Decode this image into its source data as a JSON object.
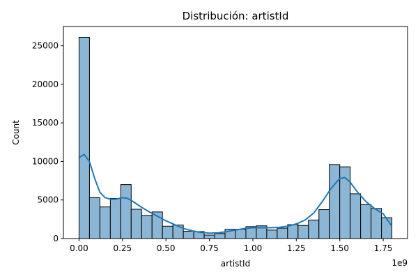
{
  "chart_data": {
    "type": "histogram",
    "title": "Distribución: artistId",
    "xlabel": "artistId",
    "ylabel": "Count",
    "x_scale_label": "1e9",
    "x_range": [
      -0.09,
      1.89
    ],
    "ylim": [
      0,
      27500
    ],
    "x_ticks": [
      0.0,
      0.25,
      0.5,
      0.75,
      1.0,
      1.25,
      1.5,
      1.75
    ],
    "x_tick_labels": [
      "0.00",
      "0.25",
      "0.50",
      "0.75",
      "1.00",
      "1.25",
      "1.50",
      "1.75"
    ],
    "y_ticks": [
      0,
      5000,
      10000,
      15000,
      20000,
      25000
    ],
    "y_tick_labels": [
      "0",
      "5000",
      "10000",
      "15000",
      "20000",
      "25000"
    ],
    "bin_start": 0.0,
    "bin_end": 1.8,
    "bar_color": "#8bb6d6",
    "bar_edge_color": "#000000",
    "kde_color": "#1f77b4",
    "values": [
      26100,
      5300,
      4100,
      5200,
      7000,
      3800,
      3000,
      3450,
      1600,
      1750,
      950,
      900,
      450,
      650,
      1200,
      1200,
      1550,
      1650,
      1100,
      1350,
      1800,
      1700,
      2400,
      3750,
      9600,
      9300,
      5800,
      4400,
      3900,
      2700
    ],
    "kde": [
      [
        0.0,
        10500
      ],
      [
        0.03,
        10900
      ],
      [
        0.06,
        10000
      ],
      [
        0.09,
        7800
      ],
      [
        0.12,
        6000
      ],
      [
        0.15,
        5300
      ],
      [
        0.18,
        5100
      ],
      [
        0.21,
        5100
      ],
      [
        0.25,
        5300
      ],
      [
        0.28,
        5200
      ],
      [
        0.31,
        4800
      ],
      [
        0.35,
        4200
      ],
      [
        0.4,
        3500
      ],
      [
        0.45,
        2900
      ],
      [
        0.5,
        2300
      ],
      [
        0.55,
        1800
      ],
      [
        0.6,
        1300
      ],
      [
        0.65,
        1000
      ],
      [
        0.7,
        800
      ],
      [
        0.75,
        700
      ],
      [
        0.8,
        750
      ],
      [
        0.85,
        900
      ],
      [
        0.9,
        1100
      ],
      [
        0.95,
        1300
      ],
      [
        1.0,
        1400
      ],
      [
        1.05,
        1400
      ],
      [
        1.1,
        1400
      ],
      [
        1.15,
        1450
      ],
      [
        1.2,
        1600
      ],
      [
        1.25,
        1900
      ],
      [
        1.3,
        2400
      ],
      [
        1.35,
        3300
      ],
      [
        1.4,
        4800
      ],
      [
        1.45,
        6500
      ],
      [
        1.5,
        7800
      ],
      [
        1.53,
        7900
      ],
      [
        1.56,
        7300
      ],
      [
        1.6,
        6100
      ],
      [
        1.65,
        4800
      ],
      [
        1.7,
        3900
      ],
      [
        1.75,
        3200
      ],
      [
        1.8,
        1600
      ]
    ]
  }
}
